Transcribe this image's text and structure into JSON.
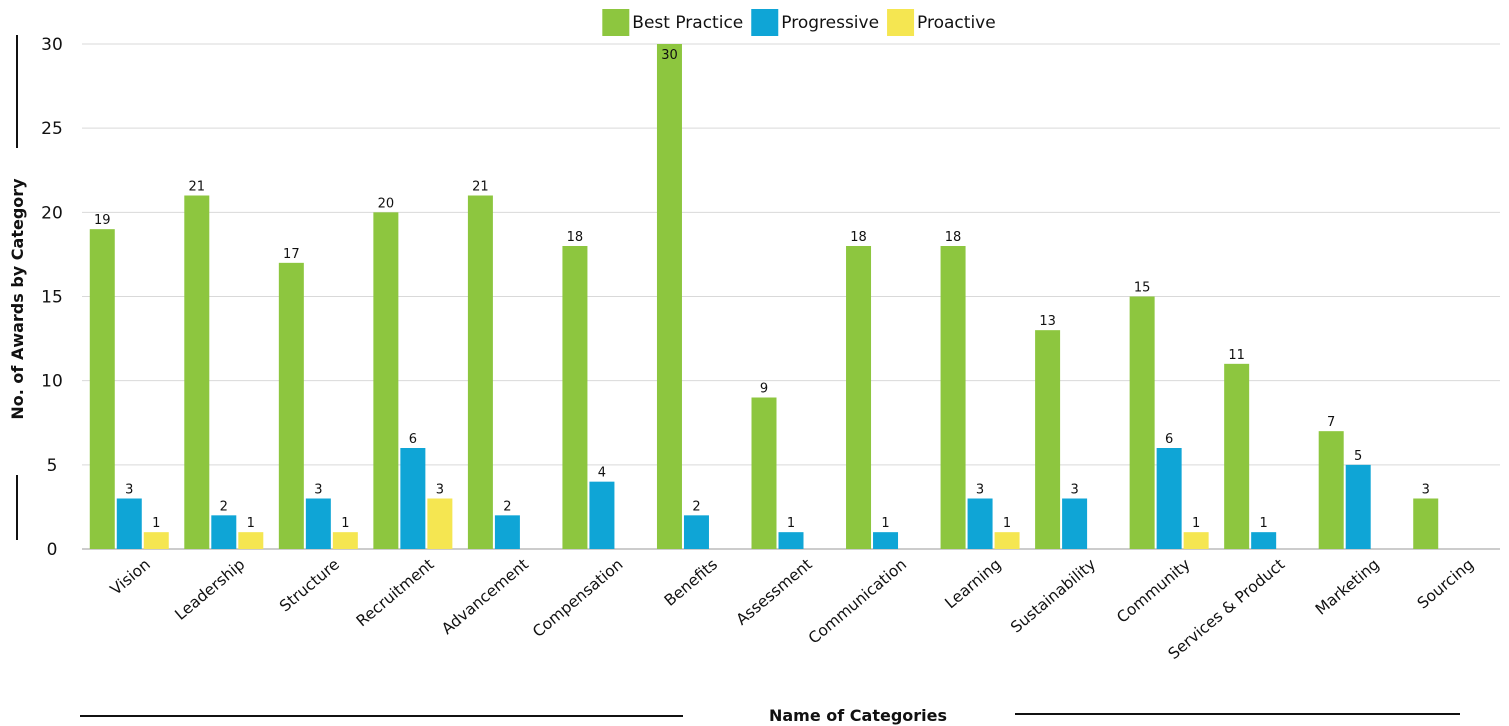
{
  "chart_data": {
    "type": "bar",
    "title": "",
    "xlabel": "Name of Categories",
    "ylabel": "No. of Awards by Category",
    "ylim": [
      0,
      30
    ],
    "yticks": [
      0,
      5,
      10,
      15,
      20,
      25,
      30
    ],
    "grid": true,
    "legend_position": "top",
    "categories": [
      "Vision",
      "Leadership",
      "Structure",
      "Recruitment",
      "Advancement",
      "Compensation",
      "Benefits",
      "Assessment",
      "Communication",
      "Learning",
      "Sustainability",
      "Community",
      "Services & Product",
      "Marketing",
      "Sourcing"
    ],
    "series": [
      {
        "name": "Best Practice",
        "color": "#8dc63f",
        "values": [
          19,
          21,
          17,
          20,
          21,
          18,
          30,
          9,
          18,
          18,
          13,
          15,
          11,
          7,
          3
        ]
      },
      {
        "name": "Progressive",
        "color": "#0fa5d6",
        "values": [
          3,
          2,
          3,
          6,
          2,
          4,
          2,
          1,
          1,
          3,
          3,
          6,
          1,
          5,
          null
        ]
      },
      {
        "name": "Proactive",
        "color": "#f5e651",
        "values": [
          1,
          1,
          1,
          3,
          null,
          null,
          null,
          null,
          null,
          1,
          null,
          1,
          null,
          null,
          null
        ]
      }
    ]
  }
}
